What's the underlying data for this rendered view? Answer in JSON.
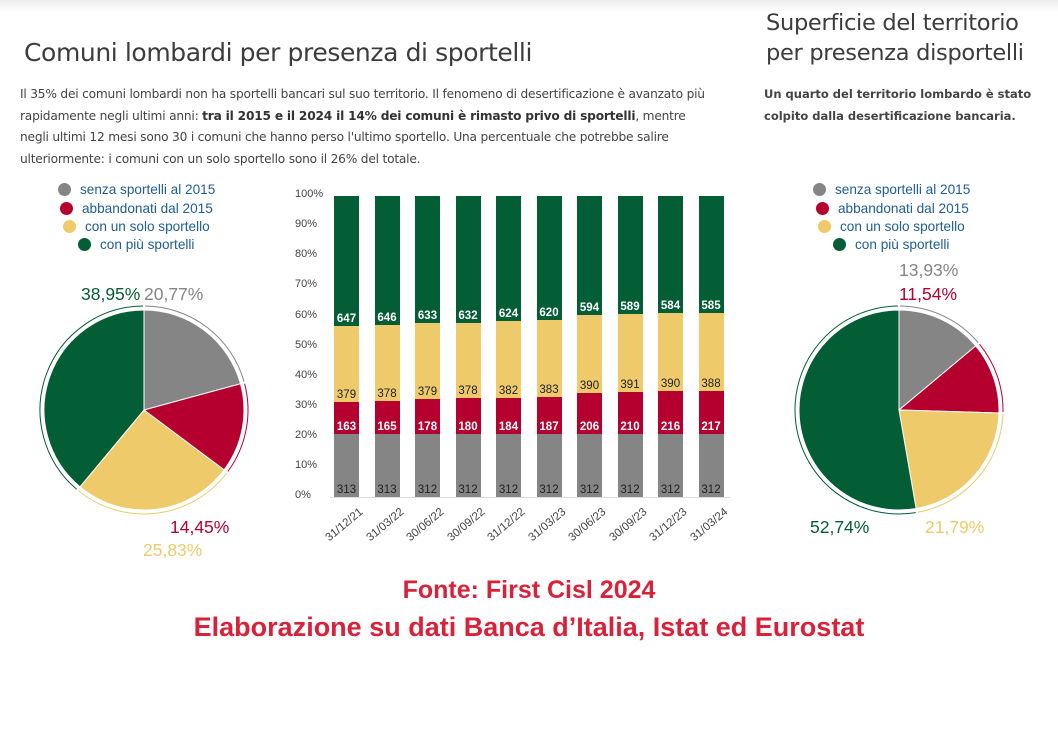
{
  "left": {
    "title": "Comuni lombardi per presenza di sportelli",
    "description": {
      "part1": "Il 35% dei comuni lombardi non ha sportelli bancari sul suo territorio. Il fenomeno di desertificazione è avanzato più rapidamente negli ultimi anni: ",
      "bold": "tra il 2015 e il 2024 il 14% dei comuni è rimasto privo di sportelli",
      "part2": ", mentre negli ultimi 12 mesi sono 30 i comuni che hanno perso l'ultimo sportello. Una percentuale che potrebbe salire ulteriormente: i comuni con un solo sportello sono il 26% del totale."
    }
  },
  "right": {
    "title_line1": "Superficie del territorio",
    "title_line2": "per presenza disportelli",
    "description": "Un quarto del territorio lombardo è stato colpito dalla desertificazione bancaria."
  },
  "legend": [
    {
      "label": "senza sportelli al 2015",
      "color": "#858585"
    },
    {
      "label": "abbandonati dal 2015",
      "color": "#b5002f"
    },
    {
      "label": "con un solo sportello",
      "color": "#efca6b"
    },
    {
      "label": "con più sportelli",
      "color": "#035d35"
    }
  ],
  "source": {
    "line1": "Fonte: First Cisl 2024",
    "line2": "Elaborazione su dati Banca d’Italia, Istat ed Eurostat"
  },
  "chart_data": [
    {
      "type": "pie",
      "title": "Comuni lombardi per presenza di sportelli",
      "labels": [
        "senza sportelli al 2015",
        "abbandonati dal 2015",
        "con un solo sportello",
        "con più sportelli"
      ],
      "values": [
        20.77,
        14.45,
        25.83,
        38.95
      ],
      "value_labels": [
        "20,77%",
        "14,45%",
        "25,83%",
        "38,95%"
      ],
      "colors": [
        "#858585",
        "#b5002f",
        "#efca6b",
        "#035d35"
      ]
    },
    {
      "type": "bar",
      "stacked": true,
      "normalized": true,
      "categories": [
        "31/12/21",
        "31/03/22",
        "30/06/22",
        "30/09/22",
        "31/12/22",
        "31/03/23",
        "30/06/23",
        "30/09/23",
        "31/12/23",
        "31/03/24"
      ],
      "yticks": [
        "0%",
        "10%",
        "20%",
        "30%",
        "40%",
        "50%",
        "60%",
        "70%",
        "80%",
        "90%",
        "100%"
      ],
      "ylim": [
        0,
        100
      ],
      "series": [
        {
          "name": "senza sportelli al 2015",
          "color": "#858585",
          "values": [
            313,
            313,
            312,
            312,
            312,
            312,
            312,
            312,
            312,
            312
          ]
        },
        {
          "name": "abbandonati dal 2015",
          "color": "#b5002f",
          "values": [
            163,
            165,
            178,
            180,
            184,
            187,
            206,
            210,
            216,
            217
          ]
        },
        {
          "name": "con un solo sportello",
          "color": "#efca6b",
          "values": [
            379,
            378,
            379,
            378,
            382,
            383,
            390,
            391,
            390,
            388
          ]
        },
        {
          "name": "con più sportelli",
          "color": "#035d35",
          "values": [
            647,
            646,
            633,
            632,
            624,
            620,
            594,
            589,
            584,
            585
          ]
        }
      ]
    },
    {
      "type": "pie",
      "title": "Superficie del territorio per presenza disportelli",
      "labels": [
        "senza sportelli al 2015",
        "abbandonati dal 2015",
        "con un solo sportello",
        "con più sportelli"
      ],
      "values": [
        13.93,
        11.54,
        21.79,
        52.74
      ],
      "value_labels": [
        "13,93%",
        "11,54%",
        "21,79%",
        "52,74%"
      ],
      "colors": [
        "#858585",
        "#b5002f",
        "#efca6b",
        "#035d35"
      ]
    }
  ]
}
